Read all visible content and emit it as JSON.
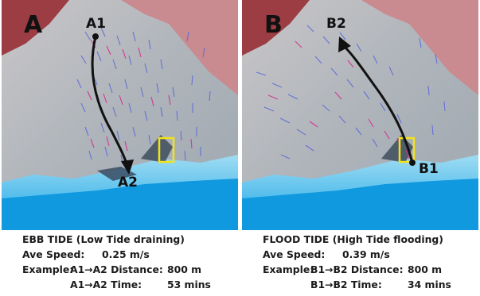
{
  "panels": [
    {
      "letter": "A",
      "start_label": "A1",
      "end_label": "A2",
      "caption": {
        "title": "EBB TIDE (Low Tide draining)",
        "speed_label": "Ave Speed:",
        "speed_value": "0.25 m/s",
        "example_prefix": "Example:",
        "distance_label": "A1→A2 Distance:",
        "distance_value": "800 m",
        "time_label": "A1→A2 Time:",
        "time_value": "53 mins"
      }
    },
    {
      "letter": "B",
      "start_label": "B1",
      "end_label": "B2",
      "caption": {
        "title": "FLOOD TIDE (High Tide flooding)",
        "speed_label": "Ave Speed:",
        "speed_value": "0.39 m/s",
        "example_prefix": "Example:",
        "distance_label": "B1→B2 Distance:",
        "distance_value": "800 m",
        "time_label": "B1→B2 Time:",
        "time_value": "34 mins"
      }
    }
  ],
  "colors": {
    "land_red": "#b0575b",
    "flat_gray": "#b3b8bc",
    "water_light": "#8fd6f2",
    "water_deep": "#19a6e6",
    "vector_blue": "#5d6bd8",
    "vector_magenta": "#d42d8e",
    "marker_yellow": "#f2e21a",
    "arrow_black": "#111111"
  }
}
